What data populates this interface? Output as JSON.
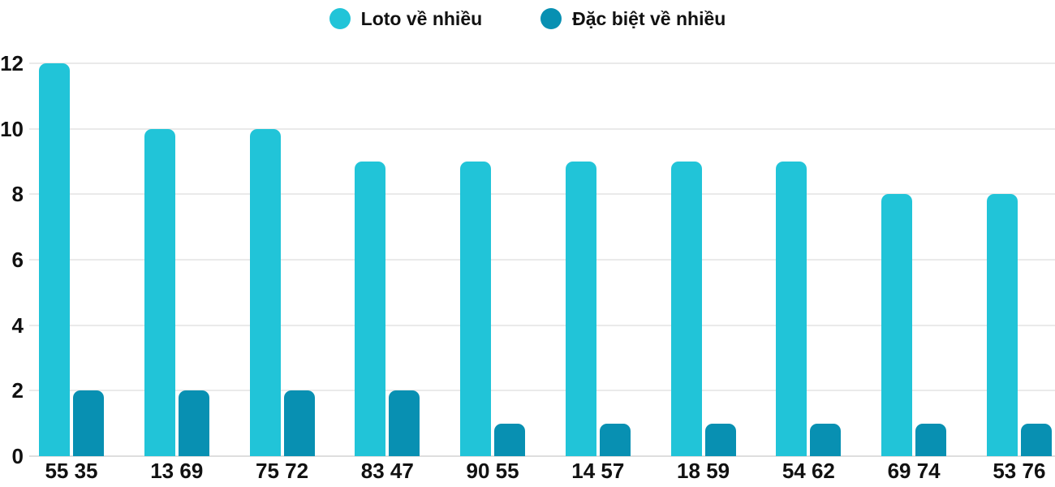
{
  "chart_data": {
    "type": "bar",
    "title": "",
    "xlabel": "",
    "ylabel": "",
    "categories": [
      "55 35",
      "13 69",
      "75 72",
      "83 47",
      "90 55",
      "14 57",
      "18 59",
      "54 62",
      "69 74",
      "53 76"
    ],
    "series": [
      {
        "name": "Loto về nhiều",
        "color": "#21C4D8",
        "values": [
          12,
          10,
          10,
          9,
          9,
          9,
          9,
          9,
          8,
          8
        ]
      },
      {
        "name": "Đặc biệt về nhiều",
        "color": "#0890B2",
        "values": [
          2,
          2,
          2,
          2,
          1,
          1,
          1,
          1,
          1,
          1
        ]
      }
    ],
    "ylim": [
      0,
      12
    ],
    "yticks": [
      0,
      2,
      4,
      6,
      8,
      10,
      12
    ],
    "grid": true,
    "gridline_color": "#eaeaea",
    "legend_position": "top-center",
    "background_color": "#ffffff",
    "text_color": "#111111"
  }
}
